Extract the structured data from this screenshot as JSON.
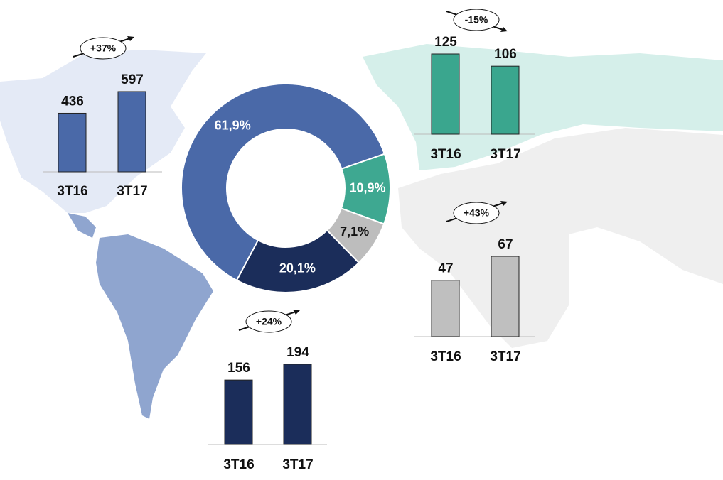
{
  "chart_data": [
    {
      "type": "pie",
      "values": [
        61.9,
        10.9,
        7.1,
        20.1
      ],
      "value_labels": [
        "61,9%",
        "10,9%",
        "7,1%",
        "20,1%"
      ],
      "colors": [
        "#4a69a8",
        "#3ea891",
        "#bdbdbd",
        "#1b2d5a"
      ]
    },
    {
      "type": "bar",
      "annotation": "+37%",
      "categories": [
        "3T16",
        "3T17"
      ],
      "values": [
        436,
        597
      ],
      "color": "#4a69a8"
    },
    {
      "type": "bar",
      "annotation": "-15%",
      "categories": [
        "3T16",
        "3T17"
      ],
      "values": [
        125,
        106
      ],
      "color": "#3aa68e"
    },
    {
      "type": "bar",
      "annotation": "+43%",
      "categories": [
        "3T16",
        "3T17"
      ],
      "values": [
        47,
        67
      ],
      "color": "#bfbfbf"
    },
    {
      "type": "bar",
      "annotation": "+24%",
      "categories": [
        "3T16",
        "3T17"
      ],
      "values": [
        156,
        194
      ],
      "color": "#1b2d5a"
    }
  ]
}
